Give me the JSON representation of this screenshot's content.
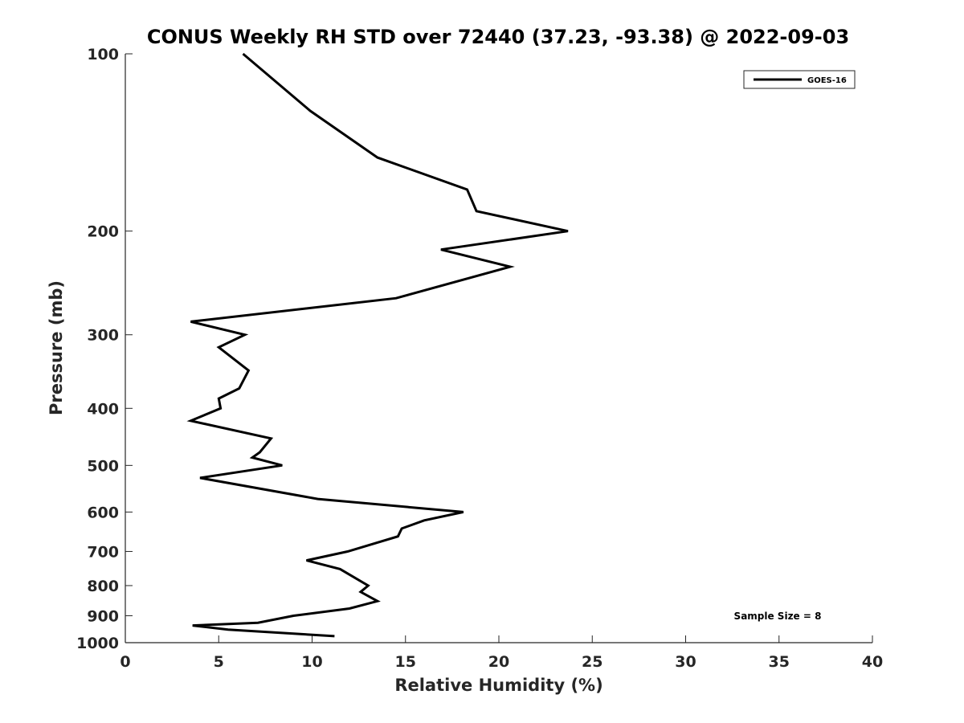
{
  "chart_data": {
    "type": "line",
    "title": "CONUS Weekly RH STD over 72440 (37.23, -93.38) @ 2022-09-03",
    "xlabel": "Relative Humidity (%)",
    "ylabel": "Pressure (mb)",
    "xlim": [
      0,
      40
    ],
    "ylim": [
      100,
      1000
    ],
    "y_scale": "log",
    "y_reversed": true,
    "x_ticks": [
      0,
      5,
      10,
      15,
      20,
      25,
      30,
      35,
      40
    ],
    "x_tick_labels": [
      "0",
      "5",
      "10",
      "15",
      "20",
      "25",
      "30",
      "35",
      "40"
    ],
    "y_ticks": [
      100,
      200,
      300,
      400,
      500,
      600,
      700,
      800,
      900,
      1000
    ],
    "y_tick_labels": [
      "100",
      "200",
      "300",
      "400",
      "500",
      "600",
      "700",
      "800",
      "900",
      "1000"
    ],
    "grid": false,
    "legend_position": "top-right",
    "series": [
      {
        "name": "GOES-16",
        "color": "#000000",
        "points": [
          [
            6.3,
            100
          ],
          [
            9.9,
            125
          ],
          [
            13.5,
            150
          ],
          [
            18.3,
            170
          ],
          [
            18.8,
            185
          ],
          [
            23.7,
            200
          ],
          [
            16.9,
            215
          ],
          [
            20.6,
            230
          ],
          [
            14.5,
            260
          ],
          [
            3.5,
            285
          ],
          [
            6.4,
            300
          ],
          [
            5.0,
            315
          ],
          [
            6.6,
            345
          ],
          [
            6.1,
            370
          ],
          [
            5.0,
            385
          ],
          [
            5.1,
            400
          ],
          [
            3.5,
            420
          ],
          [
            7.8,
            450
          ],
          [
            7.2,
            475
          ],
          [
            6.8,
            485
          ],
          [
            8.4,
            500
          ],
          [
            4.0,
            525
          ],
          [
            10.3,
            570
          ],
          [
            18.1,
            600
          ],
          [
            16.0,
            620
          ],
          [
            14.8,
            640
          ],
          [
            14.6,
            660
          ],
          [
            11.9,
            700
          ],
          [
            9.7,
            725
          ],
          [
            11.5,
            750
          ],
          [
            13.0,
            800
          ],
          [
            12.6,
            820
          ],
          [
            13.5,
            850
          ],
          [
            12.0,
            875
          ],
          [
            9.0,
            900
          ],
          [
            7.1,
            925
          ],
          [
            3.6,
            935
          ],
          [
            5.5,
            950
          ],
          [
            11.2,
            975
          ]
        ]
      }
    ],
    "annotations": [
      {
        "text": "Sample Size = 8"
      }
    ]
  }
}
